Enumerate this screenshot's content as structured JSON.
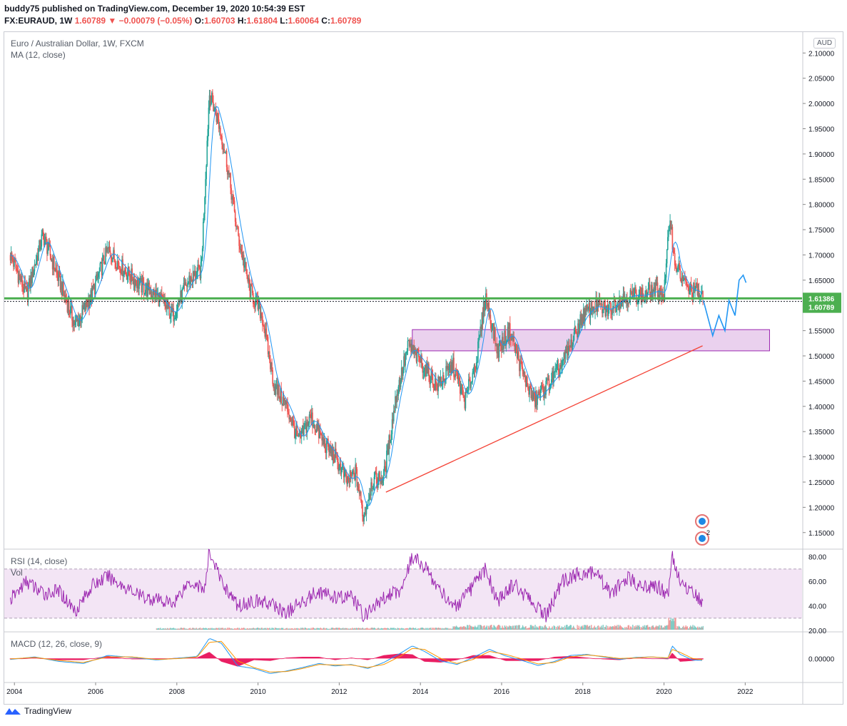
{
  "header": {
    "line1": "buddy75 published on TradingView.com, December 19, 2020 10:54:39 EST",
    "symbol": "FX:EURAUD, 1W",
    "last": "1.60789",
    "change_arrow": "▼",
    "change": "−0.00079 (−0.05%)",
    "o_label": "O:",
    "o": "1.60703",
    "h_label": "H:",
    "h": "1.61804",
    "l_label": "L:",
    "l": "1.60064",
    "c_label": "C:",
    "c": "1.60789"
  },
  "panes": {
    "price_title": "Euro / Australian Dollar, 1W, FXCM",
    "ma_label": "MA (12, close)",
    "currency_badge": "AUD",
    "rsi_label": "RSI (14, close)",
    "vol_label": "Vol",
    "macd_label": "MACD (12, 26, close, 9)"
  },
  "footer": {
    "brand": "TradingView"
  },
  "colors": {
    "up": "#26a69a",
    "down": "#ef5350",
    "ma": "#2196f3",
    "support_line": "#4caf50",
    "trendline": "#f44336",
    "zone_fill": "#e1bee7",
    "zone_border": "#9c27b0",
    "rsi": "#9c27b0",
    "macd": "#2196f3",
    "signal": "#ff9800",
    "hist": "#e91e63",
    "projection": "#2196f3",
    "last_price_bg": "#4caf50"
  },
  "chart_data": [
    {
      "type": "line",
      "name": "price",
      "ylim": [
        1.12,
        2.14
      ],
      "y_ticks": [
        "2.10000",
        "2.05000",
        "2.00000",
        "1.95000",
        "1.90000",
        "1.85000",
        "1.80000",
        "1.75000",
        "1.70000",
        "1.65000",
        "1.60000",
        "1.55000",
        "1.50000",
        "1.45000",
        "1.40000",
        "1.35000",
        "1.30000",
        "1.25000",
        "1.20000",
        "1.15000"
      ],
      "x_ticks": [
        "2004",
        "2006",
        "2008",
        "2010",
        "2012",
        "2014",
        "2016",
        "2018",
        "2020",
        "2022"
      ],
      "series": [
        {
          "x": [
            2003.9,
            2004.3,
            2004.7,
            2005.1,
            2005.5,
            2005.9,
            2006.3,
            2006.7,
            2007.1,
            2007.5,
            2007.9,
            2008.3,
            2008.6,
            2008.8,
            2009.0,
            2009.2,
            2009.5,
            2009.8,
            2010.1,
            2010.4,
            2010.7,
            2011.0,
            2011.3,
            2011.6,
            2011.9,
            2012.2,
            2012.4,
            2012.6,
            2012.8,
            2013.1,
            2013.4,
            2013.7,
            2014.0,
            2014.4,
            2014.8,
            2015.1,
            2015.4,
            2015.6,
            2015.9,
            2016.2,
            2016.5,
            2016.8,
            2017.1,
            2017.4,
            2017.7,
            2018.0,
            2018.3,
            2018.6,
            2018.9,
            2019.2,
            2019.5,
            2019.8,
            2020.0,
            2020.15,
            2020.25,
            2020.4,
            2020.6,
            2020.8,
            2020.97
          ],
          "values": [
            1.7,
            1.62,
            1.74,
            1.65,
            1.56,
            1.62,
            1.71,
            1.67,
            1.64,
            1.62,
            1.58,
            1.65,
            1.67,
            2.02,
            1.97,
            1.9,
            1.74,
            1.63,
            1.58,
            1.44,
            1.4,
            1.33,
            1.38,
            1.33,
            1.3,
            1.25,
            1.27,
            1.18,
            1.25,
            1.26,
            1.42,
            1.52,
            1.49,
            1.44,
            1.48,
            1.41,
            1.5,
            1.62,
            1.51,
            1.55,
            1.47,
            1.41,
            1.44,
            1.47,
            1.52,
            1.58,
            1.6,
            1.59,
            1.61,
            1.62,
            1.62,
            1.63,
            1.62,
            1.78,
            1.69,
            1.66,
            1.63,
            1.63,
            1.608
          ]
        }
      ],
      "last_price": "1.60789",
      "level_label": "1.61386",
      "support_level": 1.61386,
      "zone": {
        "from_x": 2013.8,
        "to_x": 2022.6,
        "low": 1.51,
        "high": 1.552
      },
      "trendline": {
        "x": [
          2013.15,
          2020.95
        ],
        "y": [
          1.23,
          1.52
        ]
      },
      "projection": {
        "x": [
          2020.97,
          2021.2,
          2021.35,
          2021.5,
          2021.6,
          2021.75,
          2021.85,
          2021.95,
          2022.02
        ],
        "y": [
          1.61,
          1.54,
          1.58,
          1.55,
          1.61,
          1.58,
          1.65,
          1.66,
          1.645
        ]
      }
    },
    {
      "type": "line",
      "name": "RSI",
      "ylim": [
        20,
        85
      ],
      "y_ticks": [
        "80.00",
        "60.00",
        "40.00",
        "20.00"
      ],
      "band": [
        30,
        70
      ],
      "series": [
        {
          "x": [
            2003.9,
            2004.3,
            2004.7,
            2005.1,
            2005.5,
            2005.9,
            2006.3,
            2006.7,
            2007.1,
            2007.5,
            2007.9,
            2008.3,
            2008.7,
            2008.8,
            2009.1,
            2009.5,
            2009.9,
            2010.3,
            2010.7,
            2011.1,
            2011.5,
            2011.9,
            2012.3,
            2012.6,
            2012.9,
            2013.2,
            2013.5,
            2013.8,
            2014.1,
            2014.5,
            2014.9,
            2015.3,
            2015.6,
            2015.9,
            2016.3,
            2016.7,
            2017.1,
            2017.5,
            2017.9,
            2018.3,
            2018.7,
            2019.1,
            2019.5,
            2019.9,
            2020.1,
            2020.2,
            2020.4,
            2020.7,
            2020.97
          ],
          "values": [
            45,
            60,
            50,
            52,
            36,
            56,
            64,
            56,
            48,
            45,
            42,
            60,
            54,
            85,
            60,
            40,
            44,
            42,
            34,
            44,
            52,
            46,
            48,
            32,
            40,
            50,
            52,
            80,
            72,
            52,
            38,
            56,
            70,
            44,
            58,
            44,
            32,
            60,
            66,
            68,
            50,
            62,
            56,
            55,
            48,
            82,
            58,
            52,
            42
          ]
        }
      ]
    },
    {
      "type": "line",
      "name": "MACD",
      "ylim": [
        -0.045,
        0.05
      ],
      "y_ticks": [
        "0.00000"
      ],
      "series": [
        {
          "name": "MACD",
          "x": [
            2003.9,
            2004.5,
            2005.1,
            2005.7,
            2006.3,
            2006.9,
            2007.5,
            2008.1,
            2008.5,
            2008.8,
            2009.1,
            2009.5,
            2009.9,
            2010.3,
            2010.7,
            2011.1,
            2011.5,
            2011.9,
            2012.3,
            2012.7,
            2013.1,
            2013.5,
            2013.8,
            2014.1,
            2014.5,
            2014.9,
            2015.3,
            2015.7,
            2016.1,
            2016.5,
            2016.9,
            2017.3,
            2017.7,
            2018.1,
            2018.5,
            2018.9,
            2019.3,
            2019.7,
            2020.1,
            2020.2,
            2020.4,
            2020.7,
            2020.97
          ],
          "values": [
            -0.002,
            0.003,
            -0.006,
            -0.01,
            0.006,
            0.002,
            -0.003,
            0.001,
            0.004,
            0.04,
            0.03,
            -0.015,
            -0.02,
            -0.03,
            -0.025,
            -0.018,
            -0.01,
            -0.015,
            -0.012,
            -0.02,
            -0.008,
            0.01,
            0.025,
            0.014,
            -0.005,
            -0.012,
            0.002,
            0.018,
            0.005,
            -0.004,
            -0.014,
            -0.006,
            0.006,
            0.008,
            0.003,
            -0.002,
            0.002,
            0.003,
            0.0,
            0.025,
            0.008,
            -0.003,
            -0.004
          ]
        },
        {
          "name": "Signal",
          "x": [
            2003.9,
            2004.5,
            2005.1,
            2005.7,
            2006.3,
            2006.9,
            2007.5,
            2008.1,
            2008.5,
            2008.8,
            2009.1,
            2009.5,
            2009.9,
            2010.3,
            2010.7,
            2011.1,
            2011.5,
            2011.9,
            2012.3,
            2012.7,
            2013.1,
            2013.5,
            2013.8,
            2014.1,
            2014.5,
            2014.9,
            2015.3,
            2015.7,
            2016.1,
            2016.5,
            2016.9,
            2017.3,
            2017.7,
            2018.1,
            2018.5,
            2018.9,
            2019.3,
            2019.7,
            2020.1,
            2020.2,
            2020.4,
            2020.7,
            2020.97
          ],
          "values": [
            -0.001,
            0.002,
            -0.004,
            -0.008,
            0.003,
            0.003,
            -0.002,
            0.0,
            0.003,
            0.032,
            0.034,
            -0.005,
            -0.018,
            -0.027,
            -0.026,
            -0.02,
            -0.012,
            -0.013,
            -0.013,
            -0.018,
            -0.012,
            0.004,
            0.02,
            0.018,
            0.0,
            -0.01,
            -0.002,
            0.014,
            0.008,
            -0.001,
            -0.011,
            -0.008,
            0.003,
            0.007,
            0.004,
            0.0,
            0.001,
            0.003,
            0.001,
            0.018,
            0.012,
            0.0,
            -0.003
          ]
        }
      ]
    }
  ]
}
